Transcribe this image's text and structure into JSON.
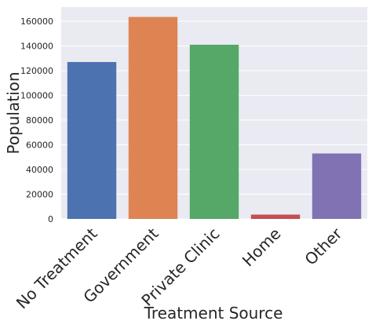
{
  "chart_data": {
    "type": "bar",
    "categories": [
      "No Treatment",
      "Government",
      "Private Clinic",
      "Home",
      "Other"
    ],
    "values": [
      127000,
      163500,
      141000,
      3500,
      53000
    ],
    "colors": [
      "#4c72b0",
      "#dd8452",
      "#55a868",
      "#c44e52",
      "#8172b3"
    ],
    "xlabel": "Treatment Source",
    "ylabel": "Population",
    "ylim": [
      0,
      171500
    ],
    "yticks": [
      0,
      20000,
      40000,
      60000,
      80000,
      100000,
      120000,
      140000,
      160000
    ],
    "ytick_labels": [
      "0",
      "20000",
      "40000",
      "60000",
      "80000",
      "100000",
      "120000",
      "140000",
      "160000"
    ],
    "grid": true,
    "background": "#eaeaf2",
    "grid_color": "#ffffff"
  }
}
